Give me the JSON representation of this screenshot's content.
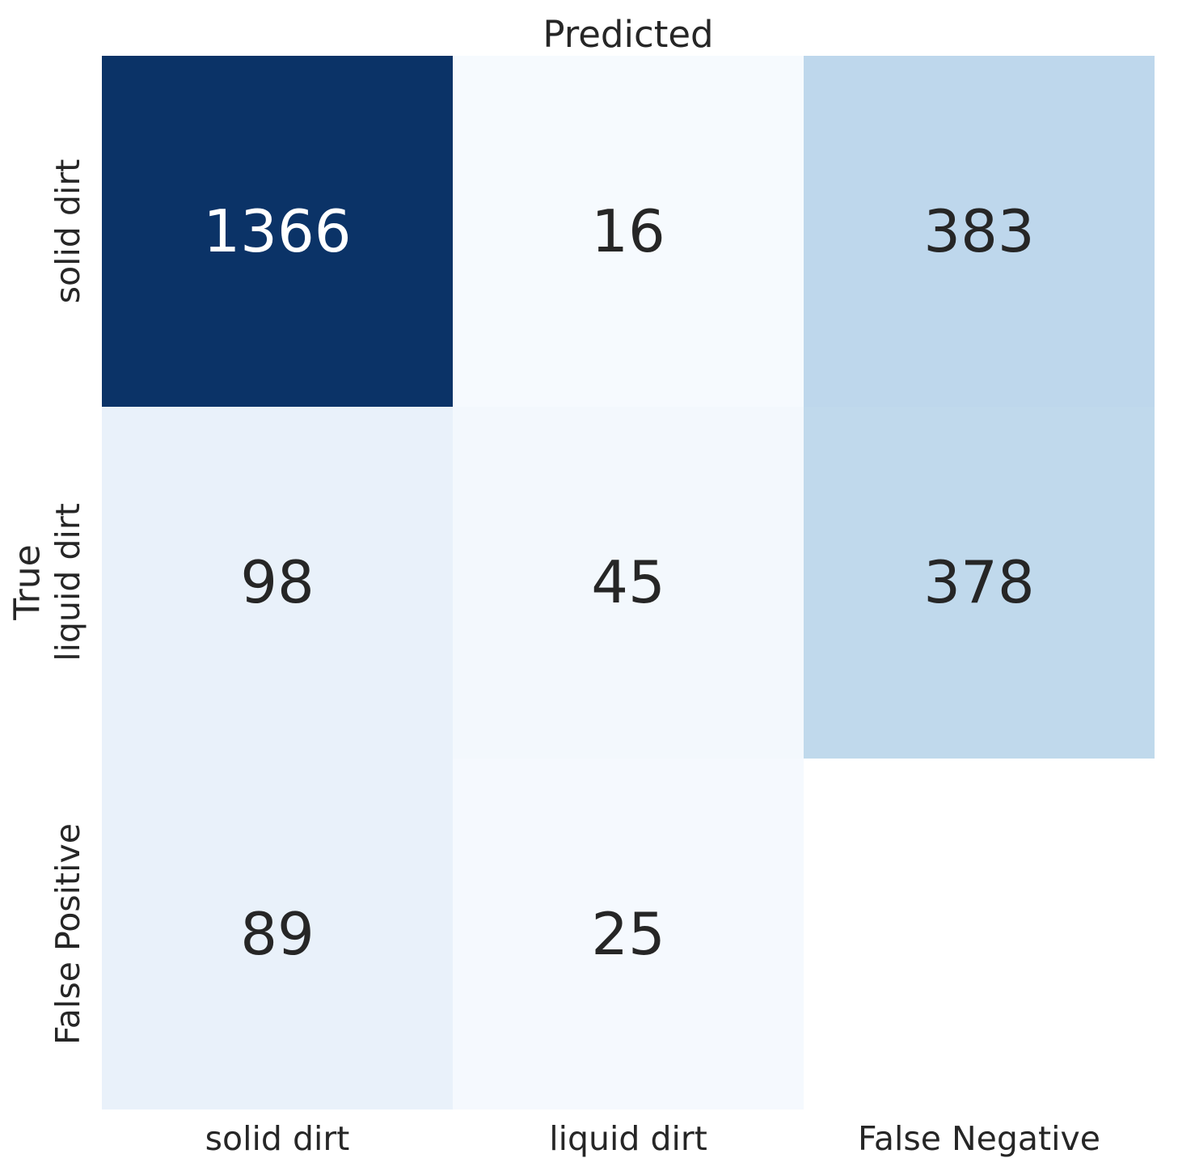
{
  "figure": {
    "background": "#ffffff",
    "text_color": "#262626"
  },
  "chart_data": {
    "type": "heatmap",
    "subtype": "confusion-matrix",
    "title": "Predicted",
    "xlabel": "Predicted",
    "ylabel": "True",
    "colormap": "Blues",
    "legend": "none",
    "grid": "off",
    "x_tick_labels": [
      "solid dirt",
      "liquid dirt",
      "False Negative"
    ],
    "y_tick_labels": [
      "solid dirt",
      "liquid dirt",
      "False Positive"
    ],
    "matrix": [
      [
        1366,
        16,
        383
      ],
      [
        98,
        45,
        378
      ],
      [
        89,
        25,
        null
      ]
    ],
    "cell_colors": [
      [
        "#0b3367",
        "#f6fafe",
        "#bed7ec"
      ],
      [
        "#e9f1fa",
        "#f3f8fd",
        "#c0d9ec"
      ],
      [
        "#e9f1fa",
        "#f5f9fe",
        null
      ]
    ],
    "value_text_colors": [
      [
        "#ffffff",
        "#262626",
        "#262626"
      ],
      [
        "#262626",
        "#262626",
        "#262626"
      ],
      [
        "#262626",
        "#262626",
        null
      ]
    ],
    "empty_cell_color": "#ffffff"
  }
}
